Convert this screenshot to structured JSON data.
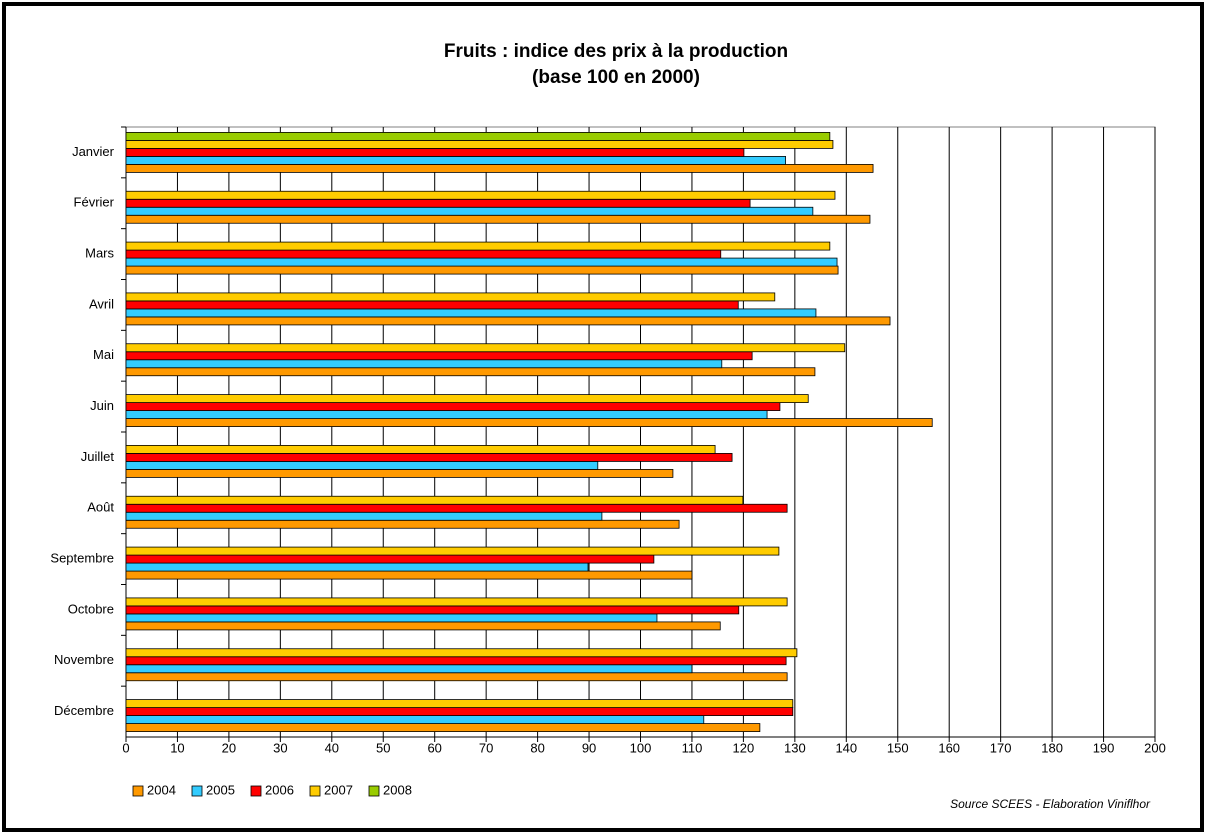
{
  "chart_data": {
    "type": "hbar",
    "title": "Fruits : indice des prix à la production",
    "subtitle": "(base 100 en 2000)",
    "annotation": "Source SCEES - Elaboration Viniflhor",
    "categories": [
      "Janvier",
      "Février",
      "Mars",
      "Avril",
      "Mai",
      "Juin",
      "Juillet",
      "Août",
      "Septembre",
      "Octobre",
      "Novembre",
      "Décembre"
    ],
    "series": [
      {
        "name": "2004",
        "color": "#ff9900",
        "values": [
          145.2,
          144.6,
          138.4,
          148.5,
          133.9,
          156.7,
          106.3,
          107.5,
          110,
          115.5,
          128.5,
          123.2
        ]
      },
      {
        "name": "2005",
        "color": "#33ccff",
        "values": [
          128.2,
          133.5,
          138.2,
          134.1,
          115.8,
          124.6,
          91.7,
          92.5,
          89.8,
          103.2,
          110,
          112.3
        ]
      },
      {
        "name": "2006",
        "color": "#ff0000",
        "values": [
          120.1,
          121.3,
          115.6,
          119,
          121.7,
          127.1,
          117.8,
          128.5,
          102.6,
          119.1,
          128.3,
          129.6
        ]
      },
      {
        "name": "2007",
        "color": "#ffcc00",
        "values": [
          137.4,
          137.8,
          136.8,
          126.1,
          139.7,
          132.6,
          114.5,
          119.9,
          126.9,
          128.5,
          130.4,
          129.6
        ]
      },
      {
        "name": "2008",
        "color": "#99cc00",
        "values": [
          136.8,
          null,
          null,
          null,
          null,
          null,
          null,
          null,
          null,
          null,
          null,
          null
        ]
      }
    ],
    "xlim": [
      0,
      200
    ],
    "xticks": [
      0,
      10,
      20,
      30,
      40,
      50,
      60,
      70,
      80,
      90,
      100,
      110,
      120,
      130,
      140,
      150,
      160,
      170,
      180,
      190,
      200
    ],
    "grid": true,
    "legend": "bottom-left"
  }
}
